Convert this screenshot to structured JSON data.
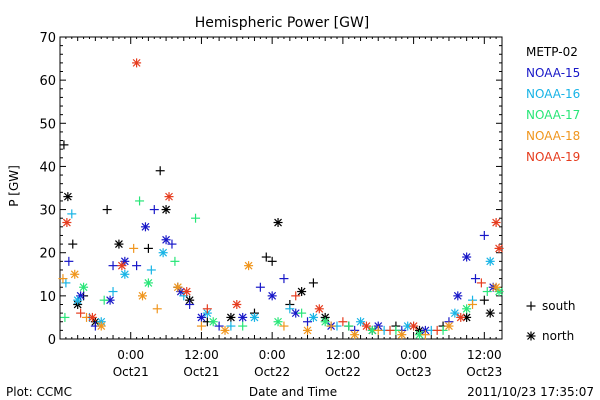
{
  "chart_data": {
    "type": "scatter",
    "title": "Hemispheric Power [GW]",
    "ylabel": "P [GW]",
    "xlabel": "Date and Time",
    "ylim": [
      0,
      70
    ],
    "yticks": [
      0,
      10,
      20,
      30,
      40,
      50,
      60,
      70
    ],
    "xlim": [
      "2011-10-20 12:00",
      "2011-10-23 15:00"
    ],
    "xticks": [
      {
        "x": "2011-10-21 00:00",
        "time": "0:00",
        "date": "Oct21"
      },
      {
        "x": "2011-10-21 12:00",
        "time": "12:00",
        "date": "Oct21"
      },
      {
        "x": "2011-10-22 00:00",
        "time": "0:00",
        "date": "Oct22"
      },
      {
        "x": "2011-10-22 12:00",
        "time": "12:00",
        "date": "Oct22"
      },
      {
        "x": "2011-10-23 00:00",
        "time": "0:00",
        "date": "Oct23"
      },
      {
        "x": "2011-10-23 12:00",
        "time": "12:00",
        "date": "Oct23"
      }
    ],
    "grid": false,
    "legend_position": "right",
    "series": [
      {
        "name": "METP-02",
        "color": "#000000",
        "points": [
          {
            "x": "2011-10-20 12:40",
            "y": 45,
            "m": "+"
          },
          {
            "x": "2011-10-20 13:20",
            "y": 33,
            "m": "*"
          },
          {
            "x": "2011-10-20 14:10",
            "y": 22,
            "m": "+"
          },
          {
            "x": "2011-10-20 15:00",
            "y": 8,
            "m": "*"
          },
          {
            "x": "2011-10-20 16:00",
            "y": 10,
            "m": "+"
          },
          {
            "x": "2011-10-20 18:00",
            "y": 4,
            "m": "*"
          },
          {
            "x": "2011-10-20 20:00",
            "y": 30,
            "m": "+"
          },
          {
            "x": "2011-10-20 22:00",
            "y": 22,
            "m": "*"
          },
          {
            "x": "2011-10-21 03:00",
            "y": 21,
            "m": "+"
          },
          {
            "x": "2011-10-21 05:00",
            "y": 39,
            "m": "+"
          },
          {
            "x": "2011-10-21 06:00",
            "y": 30,
            "m": "*"
          },
          {
            "x": "2011-10-21 08:00",
            "y": 12,
            "m": "+"
          },
          {
            "x": "2011-10-21 10:00",
            "y": 9,
            "m": "*"
          },
          {
            "x": "2011-10-21 13:00",
            "y": 4,
            "m": "+"
          },
          {
            "x": "2011-10-21 17:00",
            "y": 5,
            "m": "*"
          },
          {
            "x": "2011-10-21 21:00",
            "y": 6,
            "m": "+"
          },
          {
            "x": "2011-10-21 23:00",
            "y": 19,
            "m": "+"
          },
          {
            "x": "2011-10-22 00:00",
            "y": 18,
            "m": "+"
          },
          {
            "x": "2011-10-22 01:00",
            "y": 27,
            "m": "*"
          },
          {
            "x": "2011-10-22 03:00",
            "y": 8,
            "m": "+"
          },
          {
            "x": "2011-10-22 05:00",
            "y": 11,
            "m": "*"
          },
          {
            "x": "2011-10-22 07:00",
            "y": 13,
            "m": "+"
          },
          {
            "x": "2011-10-22 09:00",
            "y": 5,
            "m": "*"
          },
          {
            "x": "2011-10-22 13:00",
            "y": 3,
            "m": "+"
          },
          {
            "x": "2011-10-22 17:00",
            "y": 2,
            "m": "*"
          },
          {
            "x": "2011-10-22 21:00",
            "y": 3,
            "m": "+"
          },
          {
            "x": "2011-10-23 01:00",
            "y": 2,
            "m": "*"
          },
          {
            "x": "2011-10-23 05:00",
            "y": 3,
            "m": "+"
          },
          {
            "x": "2011-10-23 09:00",
            "y": 5,
            "m": "*"
          },
          {
            "x": "2011-10-23 12:00",
            "y": 9,
            "m": "+"
          },
          {
            "x": "2011-10-23 13:00",
            "y": 6,
            "m": "*"
          }
        ]
      },
      {
        "name": "NOAA-15",
        "color": "#1818c8",
        "points": [
          {
            "x": "2011-10-20 13:30",
            "y": 18,
            "m": "+"
          },
          {
            "x": "2011-10-20 15:30",
            "y": 10,
            "m": "*"
          },
          {
            "x": "2011-10-20 18:00",
            "y": 3,
            "m": "+"
          },
          {
            "x": "2011-10-20 20:30",
            "y": 9,
            "m": "*"
          },
          {
            "x": "2011-10-20 21:00",
            "y": 17,
            "m": "+"
          },
          {
            "x": "2011-10-20 23:00",
            "y": 18,
            "m": "*"
          },
          {
            "x": "2011-10-21 01:00",
            "y": 17,
            "m": "+"
          },
          {
            "x": "2011-10-21 02:30",
            "y": 26,
            "m": "*"
          },
          {
            "x": "2011-10-21 04:00",
            "y": 30,
            "m": "+"
          },
          {
            "x": "2011-10-21 06:00",
            "y": 23,
            "m": "*"
          },
          {
            "x": "2011-10-21 07:00",
            "y": 22,
            "m": "+"
          },
          {
            "x": "2011-10-21 08:30",
            "y": 11,
            "m": "*"
          },
          {
            "x": "2011-10-21 10:00",
            "y": 8,
            "m": "+"
          },
          {
            "x": "2011-10-21 12:00",
            "y": 5,
            "m": "*"
          },
          {
            "x": "2011-10-21 15:00",
            "y": 3,
            "m": "+"
          },
          {
            "x": "2011-10-21 19:00",
            "y": 5,
            "m": "*"
          },
          {
            "x": "2011-10-21 22:00",
            "y": 12,
            "m": "+"
          },
          {
            "x": "2011-10-22 00:00",
            "y": 10,
            "m": "*"
          },
          {
            "x": "2011-10-22 02:00",
            "y": 14,
            "m": "+"
          },
          {
            "x": "2011-10-22 04:00",
            "y": 6,
            "m": "*"
          },
          {
            "x": "2011-10-22 06:00",
            "y": 4,
            "m": "+"
          },
          {
            "x": "2011-10-22 10:00",
            "y": 3,
            "m": "*"
          },
          {
            "x": "2011-10-22 14:00",
            "y": 2,
            "m": "+"
          },
          {
            "x": "2011-10-22 18:00",
            "y": 3,
            "m": "*"
          },
          {
            "x": "2011-10-22 22:00",
            "y": 2,
            "m": "+"
          },
          {
            "x": "2011-10-23 02:00",
            "y": 2,
            "m": "*"
          },
          {
            "x": "2011-10-23 06:00",
            "y": 4,
            "m": "+"
          },
          {
            "x": "2011-10-23 07:30",
            "y": 10,
            "m": "*"
          },
          {
            "x": "2011-10-23 09:00",
            "y": 19,
            "m": "*"
          },
          {
            "x": "2011-10-23 10:30",
            "y": 14,
            "m": "+"
          },
          {
            "x": "2011-10-23 12:00",
            "y": 24,
            "m": "+"
          },
          {
            "x": "2011-10-23 13:30",
            "y": 12,
            "m": "*"
          }
        ]
      },
      {
        "name": "NOAA-16",
        "color": "#18b4e6",
        "points": [
          {
            "x": "2011-10-20 13:00",
            "y": 13,
            "m": "+"
          },
          {
            "x": "2011-10-20 14:00",
            "y": 29,
            "m": "+"
          },
          {
            "x": "2011-10-20 15:00",
            "y": 9,
            "m": "*"
          },
          {
            "x": "2011-10-20 17:00",
            "y": 5,
            "m": "+"
          },
          {
            "x": "2011-10-20 19:00",
            "y": 4,
            "m": "*"
          },
          {
            "x": "2011-10-20 21:00",
            "y": 11,
            "m": "+"
          },
          {
            "x": "2011-10-20 23:00",
            "y": 15,
            "m": "*"
          },
          {
            "x": "2011-10-21 03:30",
            "y": 16,
            "m": "+"
          },
          {
            "x": "2011-10-21 05:30",
            "y": 20,
            "m": "*"
          },
          {
            "x": "2011-10-21 09:00",
            "y": 10,
            "m": "+"
          },
          {
            "x": "2011-10-21 13:00",
            "y": 6,
            "m": "*"
          },
          {
            "x": "2011-10-21 17:00",
            "y": 3,
            "m": "+"
          },
          {
            "x": "2011-10-21 21:00",
            "y": 5,
            "m": "*"
          },
          {
            "x": "2011-10-22 03:00",
            "y": 7,
            "m": "+"
          },
          {
            "x": "2011-10-22 07:00",
            "y": 5,
            "m": "*"
          },
          {
            "x": "2011-10-22 11:00",
            "y": 3,
            "m": "+"
          },
          {
            "x": "2011-10-22 15:00",
            "y": 4,
            "m": "*"
          },
          {
            "x": "2011-10-22 19:00",
            "y": 2,
            "m": "+"
          },
          {
            "x": "2011-10-22 23:00",
            "y": 3,
            "m": "*"
          },
          {
            "x": "2011-10-23 03:00",
            "y": 2,
            "m": "+"
          },
          {
            "x": "2011-10-23 07:00",
            "y": 6,
            "m": "*"
          },
          {
            "x": "2011-10-23 10:00",
            "y": 9,
            "m": "+"
          },
          {
            "x": "2011-10-23 13:00",
            "y": 18,
            "m": "*"
          }
        ]
      },
      {
        "name": "NOAA-17",
        "color": "#28e678",
        "points": [
          {
            "x": "2011-10-20 12:50",
            "y": 5,
            "m": "+"
          },
          {
            "x": "2011-10-20 16:00",
            "y": 12,
            "m": "*"
          },
          {
            "x": "2011-10-20 19:30",
            "y": 9,
            "m": "+"
          },
          {
            "x": "2011-10-21 01:30",
            "y": 32,
            "m": "+"
          },
          {
            "x": "2011-10-21 03:00",
            "y": 13,
            "m": "*"
          },
          {
            "x": "2011-10-21 07:30",
            "y": 18,
            "m": "+"
          },
          {
            "x": "2011-10-21 11:00",
            "y": 28,
            "m": "+"
          },
          {
            "x": "2011-10-21 14:00",
            "y": 4,
            "m": "*"
          },
          {
            "x": "2011-10-21 19:00",
            "y": 3,
            "m": "+"
          },
          {
            "x": "2011-10-22 01:00",
            "y": 4,
            "m": "*"
          },
          {
            "x": "2011-10-22 05:00",
            "y": 6,
            "m": "+"
          },
          {
            "x": "2011-10-22 09:00",
            "y": 4,
            "m": "*"
          },
          {
            "x": "2011-10-22 13:00",
            "y": 3,
            "m": "+"
          },
          {
            "x": "2011-10-22 17:00",
            "y": 2,
            "m": "*"
          },
          {
            "x": "2011-10-22 21:00",
            "y": 2,
            "m": "+"
          },
          {
            "x": "2011-10-23 01:00",
            "y": 1,
            "m": "*"
          },
          {
            "x": "2011-10-23 05:00",
            "y": 2,
            "m": "+"
          },
          {
            "x": "2011-10-23 09:00",
            "y": 7,
            "m": "*"
          },
          {
            "x": "2011-10-23 12:30",
            "y": 11,
            "m": "+"
          },
          {
            "x": "2011-10-23 14:30",
            "y": 11,
            "m": "*"
          }
        ]
      },
      {
        "name": "NOAA-18",
        "color": "#f0961e",
        "points": [
          {
            "x": "2011-10-20 12:30",
            "y": 14,
            "m": "+"
          },
          {
            "x": "2011-10-20 14:30",
            "y": 15,
            "m": "*"
          },
          {
            "x": "2011-10-20 16:30",
            "y": 5,
            "m": "+"
          },
          {
            "x": "2011-10-20 19:00",
            "y": 3,
            "m": "*"
          },
          {
            "x": "2011-10-21 00:30",
            "y": 21,
            "m": "+"
          },
          {
            "x": "2011-10-21 02:00",
            "y": 10,
            "m": "*"
          },
          {
            "x": "2011-10-21 04:30",
            "y": 7,
            "m": "+"
          },
          {
            "x": "2011-10-21 08:00",
            "y": 12,
            "m": "*"
          },
          {
            "x": "2011-10-21 12:00",
            "y": 3,
            "m": "+"
          },
          {
            "x": "2011-10-21 16:00",
            "y": 2,
            "m": "*"
          },
          {
            "x": "2011-10-21 20:00",
            "y": 17,
            "m": "*"
          },
          {
            "x": "2011-10-22 02:00",
            "y": 3,
            "m": "+"
          },
          {
            "x": "2011-10-22 06:00",
            "y": 2,
            "m": "*"
          },
          {
            "x": "2011-10-22 10:00",
            "y": 3,
            "m": "+"
          },
          {
            "x": "2011-10-22 14:00",
            "y": 1,
            "m": "*"
          },
          {
            "x": "2011-10-22 18:00",
            "y": 2,
            "m": "+"
          },
          {
            "x": "2011-10-22 22:00",
            "y": 1,
            "m": "*"
          },
          {
            "x": "2011-10-23 02:00",
            "y": 1,
            "m": "+"
          },
          {
            "x": "2011-10-23 06:00",
            "y": 3,
            "m": "*"
          },
          {
            "x": "2011-10-23 10:00",
            "y": 8,
            "m": "+"
          },
          {
            "x": "2011-10-23 14:00",
            "y": 12,
            "m": "*"
          }
        ]
      },
      {
        "name": "NOAA-19",
        "color": "#e63c1e",
        "points": [
          {
            "x": "2011-10-20 13:10",
            "y": 27,
            "m": "*"
          },
          {
            "x": "2011-10-20 15:30",
            "y": 6,
            "m": "+"
          },
          {
            "x": "2011-10-20 17:30",
            "y": 5,
            "m": "*"
          },
          {
            "x": "2011-10-20 22:30",
            "y": 17,
            "m": "*"
          },
          {
            "x": "2011-10-21 01:00",
            "y": 64,
            "m": "*"
          },
          {
            "x": "2011-10-21 06:30",
            "y": 33,
            "m": "*"
          },
          {
            "x": "2011-10-21 09:30",
            "y": 11,
            "m": "*"
          },
          {
            "x": "2011-10-21 13:00",
            "y": 7,
            "m": "+"
          },
          {
            "x": "2011-10-21 18:00",
            "y": 8,
            "m": "*"
          },
          {
            "x": "2011-10-22 04:00",
            "y": 10,
            "m": "+"
          },
          {
            "x": "2011-10-22 08:00",
            "y": 7,
            "m": "*"
          },
          {
            "x": "2011-10-22 12:00",
            "y": 4,
            "m": "+"
          },
          {
            "x": "2011-10-22 16:00",
            "y": 3,
            "m": "*"
          },
          {
            "x": "2011-10-22 20:00",
            "y": 2,
            "m": "+"
          },
          {
            "x": "2011-10-23 00:00",
            "y": 3,
            "m": "*"
          },
          {
            "x": "2011-10-23 04:00",
            "y": 2,
            "m": "+"
          },
          {
            "x": "2011-10-23 08:00",
            "y": 5,
            "m": "*"
          },
          {
            "x": "2011-10-23 11:30",
            "y": 13,
            "m": "+"
          },
          {
            "x": "2011-10-23 14:00",
            "y": 27,
            "m": "*"
          },
          {
            "x": "2011-10-23 14:30",
            "y": 21,
            "m": "*"
          }
        ]
      }
    ],
    "marker_legend": [
      {
        "symbol": "+",
        "label": "south"
      },
      {
        "symbol": "*",
        "label": "north"
      }
    ]
  },
  "footer": {
    "left": "Plot: CCMC",
    "right": "2011/10/23 17:35:07"
  }
}
